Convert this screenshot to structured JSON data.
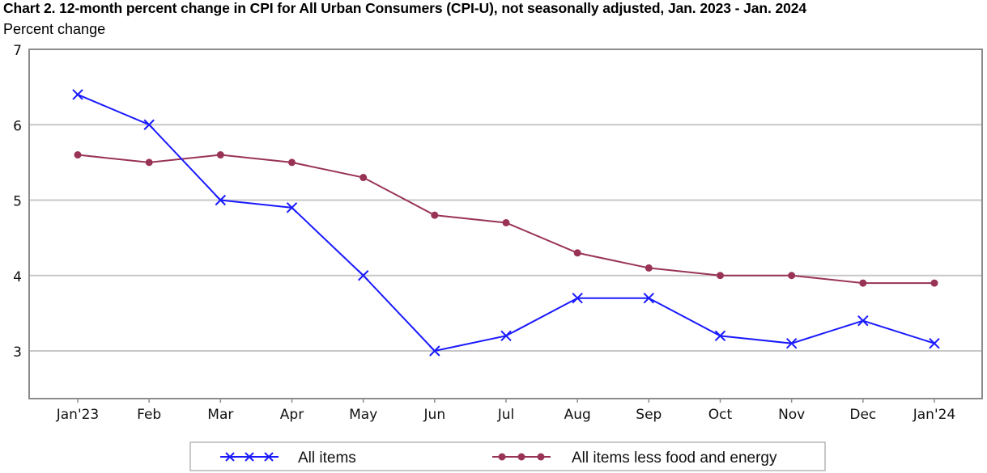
{
  "chart_data": {
    "type": "line",
    "title": "Chart 2. 12-month percent change in CPI for All Urban Consumers (CPI-U), not seasonally adjusted, Jan. 2023 - Jan. 2024",
    "ylabel": "Percent change",
    "xlabel": "",
    "ylim": [
      2.4,
      7
    ],
    "yticks": [
      3,
      4,
      5,
      6,
      7
    ],
    "grid": true,
    "legend_position": "bottom",
    "categories": [
      "Jan'23",
      "Feb",
      "Mar",
      "Apr",
      "May",
      "Jun",
      "Jul",
      "Aug",
      "Sep",
      "Oct",
      "Nov",
      "Dec",
      "Jan'24"
    ],
    "series": [
      {
        "name": "All items",
        "color": "#1a1aff",
        "marker": "x",
        "values": [
          6.4,
          6.0,
          5.0,
          4.9,
          4.0,
          3.0,
          3.2,
          3.7,
          3.7,
          3.2,
          3.1,
          3.4,
          3.1
        ]
      },
      {
        "name": "All items less food and energy",
        "color": "#993355",
        "marker": "circle",
        "values": [
          5.6,
          5.5,
          5.6,
          5.5,
          5.3,
          4.8,
          4.7,
          4.3,
          4.1,
          4.0,
          4.0,
          3.9,
          3.9
        ]
      }
    ]
  }
}
